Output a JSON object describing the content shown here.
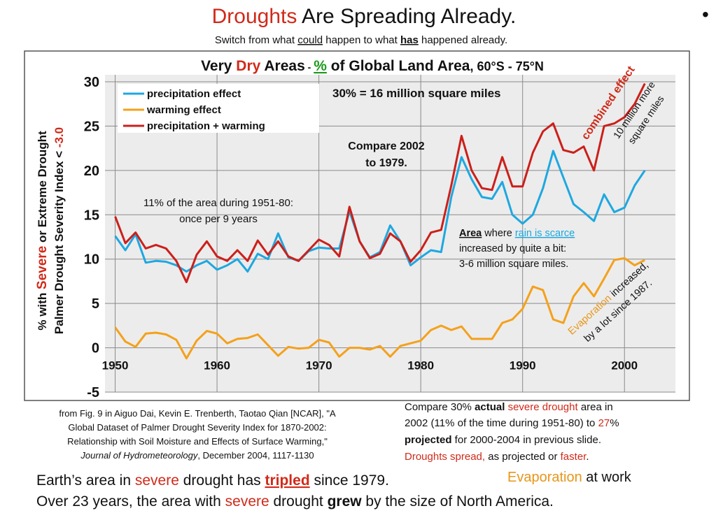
{
  "header": {
    "title": [
      "Droughts",
      " Are Spreading Already."
    ],
    "subtitle": [
      "Switch from what ",
      "could",
      " happen to what ",
      "has",
      " happened already."
    ],
    "bullet": "•"
  },
  "chart_data": {
    "type": "line",
    "title": [
      "Very ",
      "Dry",
      " Areas",
      " - ",
      "%",
      " of Global Land Area",
      ", 60°S - 75°N"
    ],
    "y_label": [
      [
        "% with ",
        "Severe",
        " or Extreme Drought"
      ],
      [
        "Palmer Drought Severity Index < ",
        "-3.0"
      ]
    ],
    "x": [
      1950,
      1951,
      1952,
      1953,
      1954,
      1955,
      1956,
      1957,
      1958,
      1959,
      1960,
      1961,
      1962,
      1963,
      1964,
      1965,
      1966,
      1967,
      1968,
      1969,
      1970,
      1971,
      1972,
      1973,
      1974,
      1975,
      1976,
      1977,
      1978,
      1979,
      1980,
      1981,
      1982,
      1983,
      1984,
      1985,
      1986,
      1987,
      1988,
      1989,
      1990,
      1991,
      1992,
      1993,
      1994,
      1995,
      1996,
      1997,
      1998,
      1999,
      2000,
      2001,
      2002
    ],
    "series": [
      {
        "name": "precipitation effect",
        "color": "#1ea8e0",
        "values": [
          12.6,
          11.0,
          12.8,
          9.6,
          9.8,
          9.7,
          9.3,
          8.6,
          9.3,
          9.8,
          8.8,
          9.3,
          10.0,
          8.6,
          10.6,
          10.0,
          12.9,
          10.2,
          9.8,
          10.9,
          11.3,
          11.2,
          11.2,
          15.4,
          12.0,
          10.2,
          10.8,
          13.8,
          12.0,
          9.3,
          10.2,
          11.0,
          10.8,
          17.0,
          21.5,
          19.0,
          17.0,
          16.8,
          18.7,
          15.0,
          14.0,
          15.0,
          18.0,
          22.2,
          19.2,
          16.2,
          15.3,
          14.3,
          17.3,
          15.3,
          15.8,
          18.3,
          20.0
        ]
      },
      {
        "name": "warming effect",
        "color": "#f4a11b",
        "values": [
          2.3,
          0.7,
          0.1,
          1.6,
          1.7,
          1.5,
          0.9,
          -1.2,
          0.8,
          1.9,
          1.6,
          0.5,
          1.0,
          1.1,
          1.5,
          0.3,
          -0.9,
          0.1,
          -0.1,
          0.0,
          0.9,
          0.6,
          -1.0,
          0.0,
          0.0,
          -0.2,
          0.2,
          -1.0,
          0.2,
          0.5,
          0.8,
          2.0,
          2.5,
          2.0,
          2.4,
          1.0,
          1.0,
          1.0,
          2.8,
          3.2,
          4.4,
          6.9,
          6.5,
          3.2,
          2.8,
          5.8,
          7.3,
          5.8,
          7.8,
          9.9,
          10.1,
          9.3,
          9.9
        ]
      },
      {
        "name": "precipitation + warming",
        "color": "#cc1f1a",
        "values": [
          14.8,
          11.8,
          13.0,
          11.2,
          11.6,
          11.2,
          9.8,
          7.4,
          10.5,
          12.0,
          10.3,
          9.8,
          11.0,
          9.8,
          12.1,
          10.5,
          12.0,
          10.3,
          9.8,
          11.0,
          12.2,
          11.6,
          10.3,
          15.9,
          12.0,
          10.1,
          10.6,
          12.9,
          12.0,
          9.7,
          11.0,
          13.0,
          13.3,
          18.3,
          23.9,
          20.0,
          18.0,
          17.8,
          21.5,
          18.2,
          18.2,
          22.0,
          24.4,
          25.3,
          22.3,
          22.0,
          22.7,
          20.0,
          25.0,
          25.3,
          26.0,
          27.5,
          29.8
        ]
      }
    ],
    "xlim": [
      1949,
      2005
    ],
    "ylim": [
      -5,
      30
    ],
    "xticks": [
      1950,
      1960,
      1970,
      1980,
      1990,
      2000
    ],
    "yticks": [
      -5,
      0,
      5,
      10,
      15,
      20,
      25,
      30
    ],
    "grid": true,
    "legend": "upper left",
    "annotations": {
      "area_note": "30% = 16 million square miles",
      "compare": [
        "Compare 2002",
        "to 1979."
      ],
      "baseline": [
        "11% of the area during 1951-80:",
        "once per 9 years"
      ],
      "rain": [
        [
          "Area",
          " where ",
          "rain is scarce"
        ],
        "increased by quite a bit:",
        "3-6 million square miles."
      ],
      "combined": "combined effect",
      "more": [
        "10 million more",
        "square miles"
      ],
      "evaporation": [
        [
          "Evaporation",
          " increased,"
        ],
        "by a lot since 1987."
      ]
    }
  },
  "citation": [
    "from Fig. 9 in Aiguo Dai, Kevin E. Trenberth, Taotao Qian [NCAR], \"A",
    "Global Dataset of Palmer Drought Severity Index for 1870-2002:",
    "Relationship with Soil Moisture and Effects of Surface Warming,\"",
    [
      "Journal of Hydrometeorology",
      ", December 2004, 1117-1130"
    ]
  ],
  "note": [
    [
      "Compare 30% ",
      "actual",
      " ",
      "severe drought",
      " area in"
    ],
    [
      "2002 (11% of the time during 1951-80) to ",
      "27",
      "%"
    ],
    [
      "projected",
      " for 2000-2004 in previous slide."
    ],
    [
      "Droughts spread,",
      " as projected or ",
      "faster",
      "."
    ]
  ],
  "footer": {
    "line1": [
      "Earth’s area in ",
      "severe",
      " drought has ",
      "tripled",
      " since 1979."
    ],
    "line2": [
      "Over 23 years, the area with ",
      "severe",
      " drought ",
      "grew",
      " by the size of North America."
    ],
    "evaporation": [
      "Evaporation",
      " at work"
    ]
  }
}
